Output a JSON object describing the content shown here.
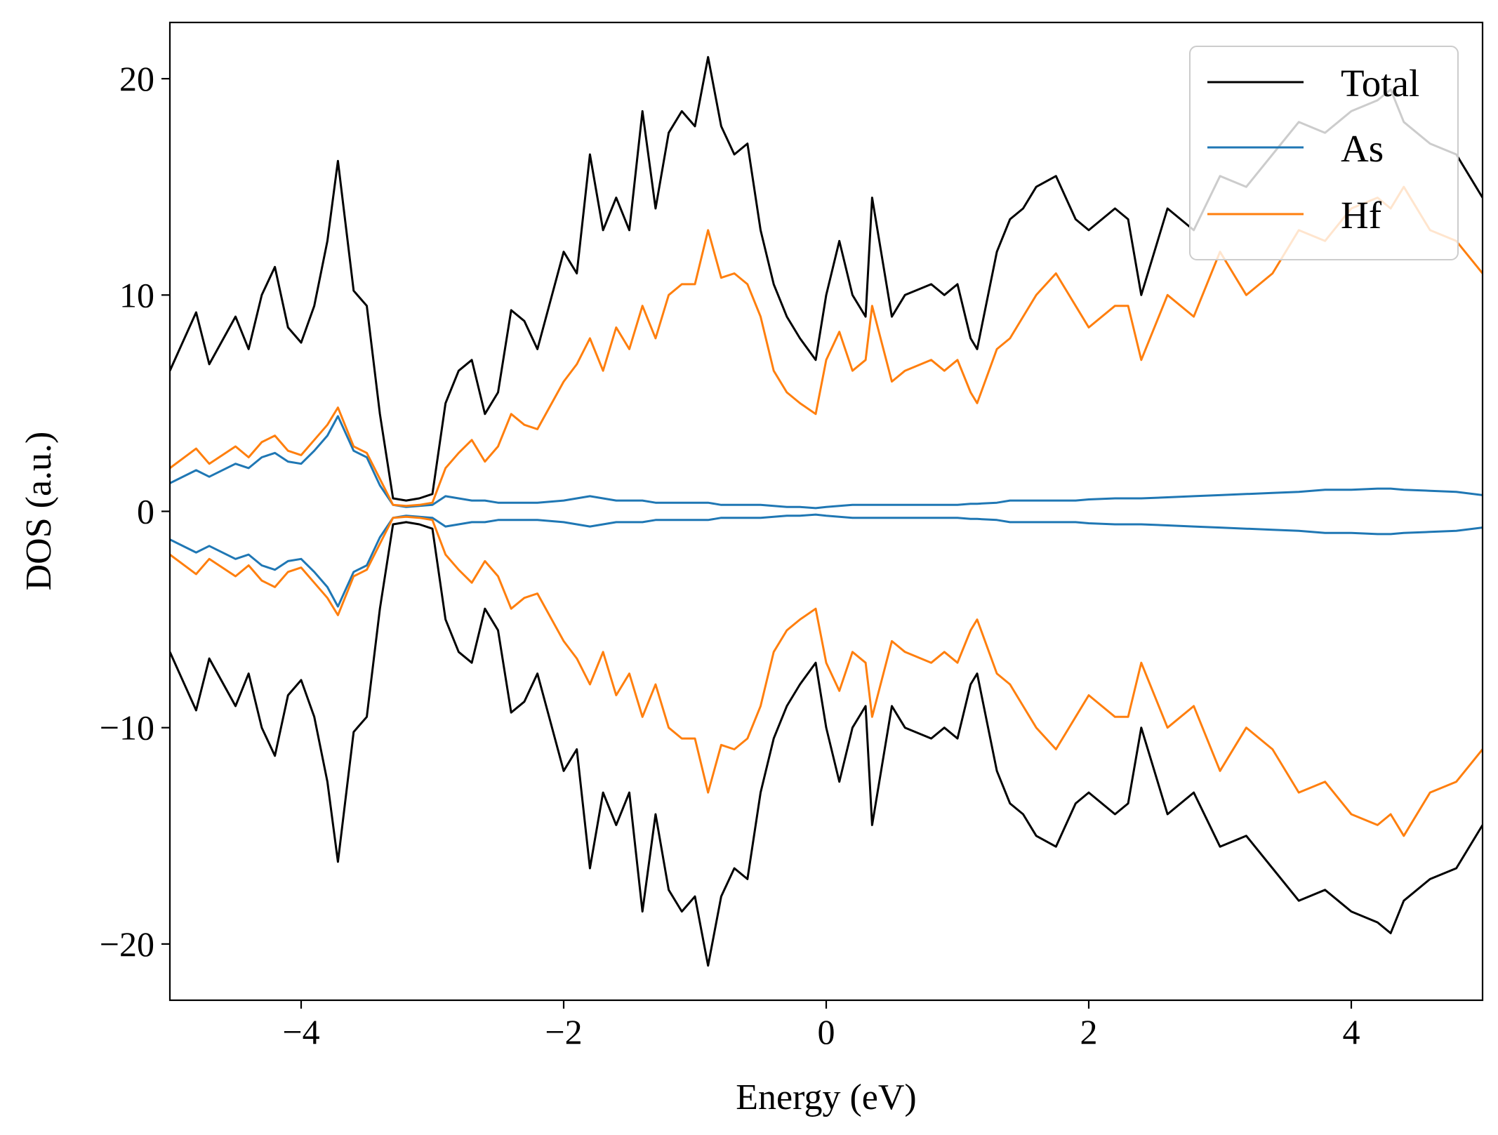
{
  "chart_data": {
    "type": "line",
    "title": "",
    "xlabel": "Energy (eV)",
    "ylabel": "DOS (a.u.)",
    "xlim": [
      -5,
      5
    ],
    "ylim": [
      -22.6,
      22.6
    ],
    "x_ticks": [
      -4,
      -2,
      0,
      2,
      4
    ],
    "x_tick_labels": [
      "−4",
      "−2",
      "0",
      "2",
      "4"
    ],
    "y_ticks": [
      20,
      10,
      0,
      -10,
      -20
    ],
    "y_tick_labels": [
      "20",
      "10",
      "0",
      "−10",
      "−20"
    ],
    "grid": false,
    "legend_position": "top-right",
    "x": [
      -5.0,
      -4.8,
      -4.7,
      -4.5,
      -4.4,
      -4.3,
      -4.2,
      -4.1,
      -4.0,
      -3.9,
      -3.8,
      -3.72,
      -3.6,
      -3.5,
      -3.4,
      -3.3,
      -3.2,
      -3.1,
      -3.0,
      -2.9,
      -2.8,
      -2.7,
      -2.6,
      -2.5,
      -2.4,
      -2.3,
      -2.2,
      -2.0,
      -1.9,
      -1.8,
      -1.7,
      -1.6,
      -1.5,
      -1.4,
      -1.3,
      -1.2,
      -1.1,
      -1.0,
      -0.9,
      -0.8,
      -0.7,
      -0.6,
      -0.5,
      -0.4,
      -0.3,
      -0.2,
      -0.08,
      0.0,
      0.1,
      0.2,
      0.3,
      0.35,
      0.5,
      0.6,
      0.8,
      0.9,
      1.0,
      1.1,
      1.15,
      1.3,
      1.4,
      1.5,
      1.6,
      1.75,
      1.9,
      2.0,
      2.2,
      2.3,
      2.4,
      2.6,
      2.8,
      3.0,
      3.2,
      3.4,
      3.6,
      3.8,
      4.0,
      4.2,
      4.3,
      4.4,
      4.6,
      4.8,
      5.0
    ],
    "series": [
      {
        "name": "Total",
        "color": "#000000",
        "values": [
          6.5,
          9.2,
          6.8,
          9.0,
          7.5,
          10.0,
          11.3,
          8.5,
          7.8,
          9.5,
          12.5,
          16.2,
          10.2,
          9.5,
          4.5,
          0.6,
          0.5,
          0.6,
          0.8,
          5.0,
          6.5,
          7.0,
          4.5,
          5.5,
          9.3,
          8.8,
          7.5,
          12.0,
          11.0,
          16.5,
          13.0,
          14.5,
          13.0,
          18.5,
          14.0,
          17.5,
          18.5,
          17.8,
          21.0,
          17.8,
          16.5,
          17.0,
          13.0,
          10.5,
          9.0,
          8.0,
          7.0,
          10.0,
          12.5,
          10.0,
          9.0,
          14.5,
          9.0,
          10.0,
          10.5,
          10.0,
          10.5,
          8.0,
          7.5,
          12.0,
          13.5,
          14.0,
          15.0,
          15.5,
          13.5,
          13.0,
          14.0,
          13.5,
          10.0,
          14.0,
          13.0,
          15.5,
          15.0,
          16.5,
          18.0,
          17.5,
          18.5,
          19.0,
          19.5,
          18.0,
          17.0,
          16.5,
          14.5
        ]
      },
      {
        "name": "As",
        "color": "#1f77b4",
        "values": [
          1.3,
          1.9,
          1.6,
          2.2,
          2.0,
          2.5,
          2.7,
          2.3,
          2.2,
          2.8,
          3.5,
          4.4,
          2.8,
          2.5,
          1.2,
          0.3,
          0.2,
          0.25,
          0.3,
          0.7,
          0.6,
          0.5,
          0.5,
          0.4,
          0.4,
          0.4,
          0.4,
          0.5,
          0.6,
          0.7,
          0.6,
          0.5,
          0.5,
          0.5,
          0.4,
          0.4,
          0.4,
          0.4,
          0.4,
          0.3,
          0.3,
          0.3,
          0.3,
          0.25,
          0.2,
          0.2,
          0.15,
          0.2,
          0.25,
          0.3,
          0.3,
          0.3,
          0.3,
          0.3,
          0.3,
          0.3,
          0.3,
          0.35,
          0.35,
          0.4,
          0.5,
          0.5,
          0.5,
          0.5,
          0.5,
          0.55,
          0.6,
          0.6,
          0.6,
          0.65,
          0.7,
          0.75,
          0.8,
          0.85,
          0.9,
          1.0,
          1.0,
          1.05,
          1.05,
          1.0,
          0.95,
          0.9,
          0.75
        ]
      },
      {
        "name": "Hf",
        "color": "#ff7f0e",
        "values": [
          2.0,
          2.9,
          2.2,
          3.0,
          2.5,
          3.2,
          3.5,
          2.8,
          2.6,
          3.3,
          4.0,
          4.8,
          3.0,
          2.7,
          1.5,
          0.3,
          0.25,
          0.3,
          0.4,
          2.0,
          2.7,
          3.3,
          2.3,
          3.0,
          4.5,
          4.0,
          3.8,
          6.0,
          6.8,
          8.0,
          6.5,
          8.5,
          7.5,
          9.5,
          8.0,
          10.0,
          10.5,
          10.5,
          13.0,
          10.8,
          11.0,
          10.5,
          9.0,
          6.5,
          5.5,
          5.0,
          4.5,
          7.0,
          8.3,
          6.5,
          7.0,
          9.5,
          6.0,
          6.5,
          7.0,
          6.5,
          7.0,
          5.5,
          5.0,
          7.5,
          8.0,
          9.0,
          10.0,
          11.0,
          9.5,
          8.5,
          9.5,
          9.5,
          7.0,
          10.0,
          9.0,
          12.0,
          10.0,
          11.0,
          13.0,
          12.5,
          14.0,
          14.5,
          14.0,
          15.0,
          13.0,
          12.5,
          11.0
        ]
      }
    ]
  }
}
